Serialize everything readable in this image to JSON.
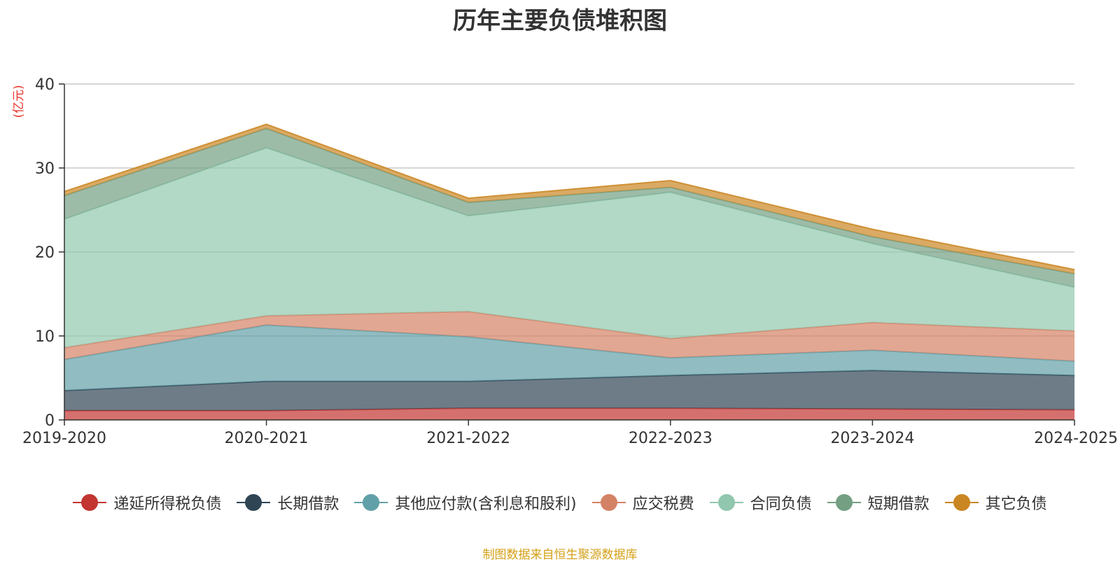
{
  "chart_data": {
    "type": "area",
    "stacked": true,
    "title": "历年主要负债堆积图",
    "ylabel": "(亿元)",
    "xlabel": "",
    "categories": [
      "2019-2020",
      "2020-2021",
      "2021-2022",
      "2022-2023",
      "2023-2024",
      "2024-2025"
    ],
    "ylim": [
      0,
      40
    ],
    "yticks": [
      "0",
      "10",
      "20",
      "30",
      "40"
    ],
    "grid": true,
    "legend_position": "bottom",
    "series": [
      {
        "name": "递延所得税负债",
        "color": "#c23531",
        "values": [
          1.1,
          1.1,
          1.4,
          1.4,
          1.3,
          1.2
        ]
      },
      {
        "name": "长期借款",
        "color": "#2f4554",
        "values": [
          2.4,
          3.5,
          3.2,
          3.9,
          4.6,
          4.1
        ]
      },
      {
        "name": "其他应付款(含利息和股利)",
        "color": "#61a0a8",
        "values": [
          3.7,
          6.7,
          5.3,
          2.1,
          2.4,
          1.7
        ]
      },
      {
        "name": "应交税费",
        "color": "#d48265",
        "values": [
          1.4,
          1.1,
          3.0,
          2.3,
          3.3,
          3.6
        ]
      },
      {
        "name": "合同负债",
        "color": "#91c7ae",
        "values": [
          15.3,
          20.0,
          11.4,
          17.4,
          9.4,
          5.2
        ]
      },
      {
        "name": "短期借款",
        "color": "#749f83",
        "values": [
          2.8,
          2.3,
          1.6,
          0.6,
          0.8,
          1.6
        ]
      },
      {
        "name": "其它负债",
        "color": "#ca8622",
        "values": [
          0.5,
          0.5,
          0.5,
          0.8,
          0.9,
          0.5
        ]
      }
    ]
  },
  "source_note": "制图数据来自恒生聚源数据库"
}
